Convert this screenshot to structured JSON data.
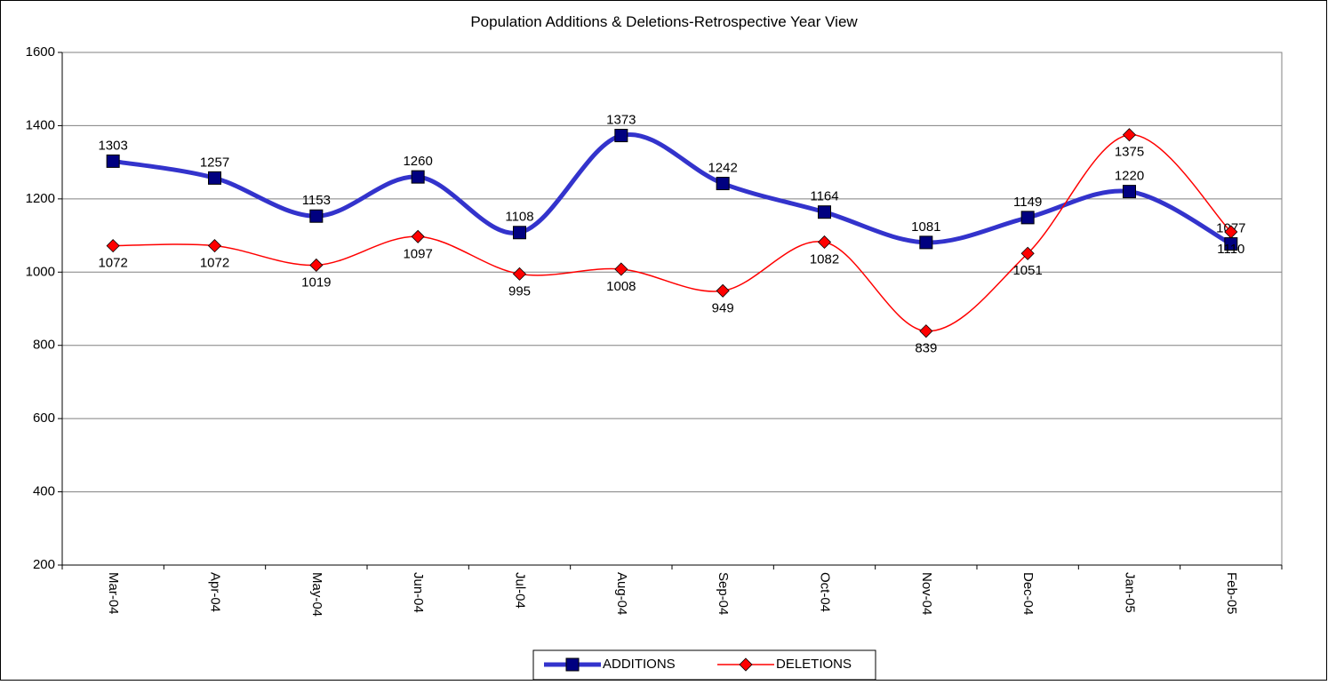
{
  "chart_data": {
    "type": "line",
    "title": "Population Additions & Deletions-Retrospective Year View",
    "categories": [
      "Mar-04",
      "Apr-04",
      "May-04",
      "Jun-04",
      "Jul-04",
      "Aug-04",
      "Sep-04",
      "Oct-04",
      "Nov-04",
      "Dec-04",
      "Jan-05",
      "Feb-05"
    ],
    "series": [
      {
        "name": "ADDITIONS",
        "color": "#3333cc",
        "marker_color": "#000080",
        "values": [
          1303,
          1257,
          1153,
          1260,
          1108,
          1373,
          1242,
          1164,
          1081,
          1149,
          1220,
          1077
        ]
      },
      {
        "name": "DELETIONS",
        "color": "#ff0000",
        "marker_color": "#ff0000",
        "values": [
          1072,
          1072,
          1019,
          1097,
          995,
          1008,
          949,
          1082,
          839,
          1051,
          1375,
          1110
        ]
      }
    ],
    "ylim": [
      200,
      1600
    ],
    "yticks": [
      200,
      400,
      600,
      800,
      1000,
      1200,
      1400,
      1600
    ],
    "grid": true,
    "legend": "bottom"
  }
}
